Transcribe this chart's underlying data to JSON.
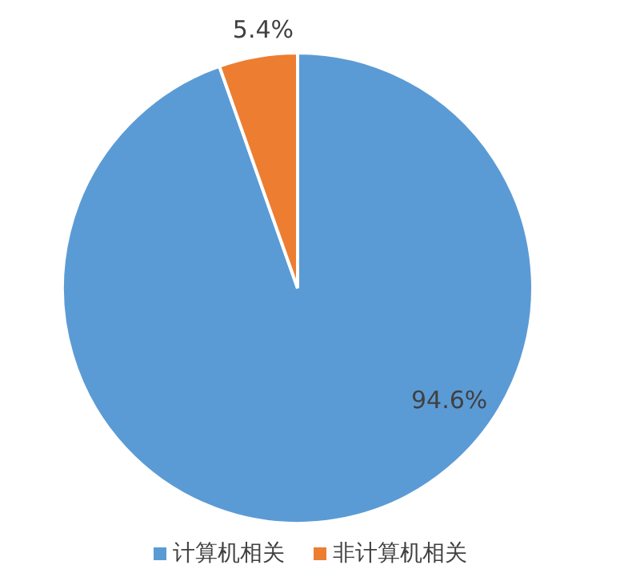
{
  "chart_data": {
    "type": "pie",
    "categories": [
      "计算机相关",
      "非计算机相关"
    ],
    "values": [
      94.6,
      5.4
    ],
    "colors": [
      "#5b9bd5",
      "#ed7d31"
    ],
    "value_labels": [
      "94.6%",
      "5.4%"
    ],
    "legend": "bottom"
  }
}
